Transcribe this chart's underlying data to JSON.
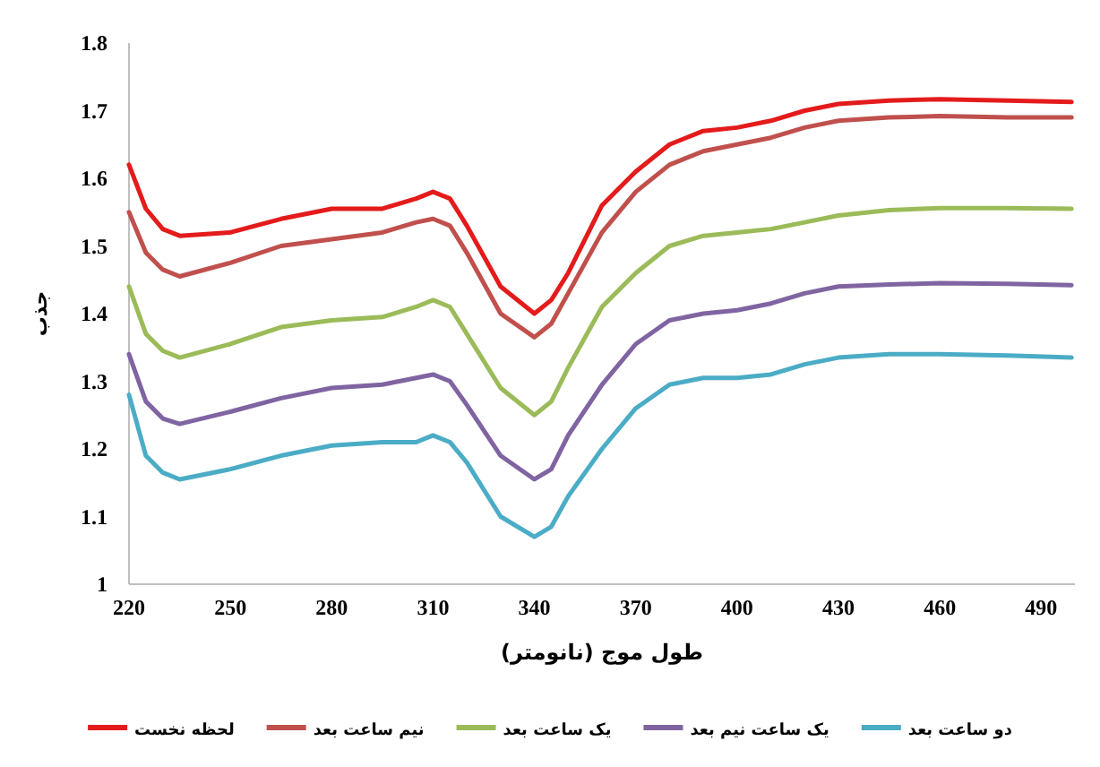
{
  "chart_data": {
    "type": "line",
    "xlabel": "طول موج (نانومتر)",
    "ylabel": "جذب",
    "x": [
      220,
      225,
      230,
      235,
      250,
      265,
      280,
      295,
      305,
      310,
      315,
      320,
      330,
      340,
      345,
      350,
      360,
      370,
      380,
      390,
      400,
      410,
      420,
      430,
      445,
      460,
      480,
      499
    ],
    "series": [
      {
        "name": "لحظه نخست",
        "color": "#e41b1b",
        "values": [
          1.62,
          1.555,
          1.525,
          1.515,
          1.52,
          1.54,
          1.555,
          1.555,
          1.57,
          1.58,
          1.57,
          1.53,
          1.44,
          1.4,
          1.42,
          1.46,
          1.56,
          1.61,
          1.65,
          1.67,
          1.675,
          1.685,
          1.7,
          1.71,
          1.715,
          1.717,
          1.715,
          1.713
        ]
      },
      {
        "name": "نیم ساعت بعد",
        "color": "#c0504d",
        "values": [
          1.55,
          1.49,
          1.465,
          1.455,
          1.475,
          1.5,
          1.51,
          1.52,
          1.535,
          1.54,
          1.53,
          1.49,
          1.4,
          1.365,
          1.385,
          1.43,
          1.52,
          1.58,
          1.62,
          1.64,
          1.65,
          1.66,
          1.675,
          1.685,
          1.69,
          1.692,
          1.69,
          1.69
        ]
      },
      {
        "name": "یک ساعت بعد",
        "color": "#9bbb59",
        "values": [
          1.44,
          1.37,
          1.345,
          1.335,
          1.355,
          1.38,
          1.39,
          1.395,
          1.41,
          1.42,
          1.41,
          1.37,
          1.29,
          1.25,
          1.27,
          1.32,
          1.41,
          1.46,
          1.5,
          1.515,
          1.52,
          1.525,
          1.535,
          1.545,
          1.553,
          1.556,
          1.556,
          1.555
        ]
      },
      {
        "name": "یک ساعت نیم بعد",
        "color": "#8064a2",
        "values": [
          1.34,
          1.27,
          1.245,
          1.237,
          1.255,
          1.275,
          1.29,
          1.295,
          1.305,
          1.31,
          1.3,
          1.265,
          1.19,
          1.155,
          1.17,
          1.22,
          1.295,
          1.355,
          1.39,
          1.4,
          1.405,
          1.415,
          1.43,
          1.44,
          1.443,
          1.445,
          1.444,
          1.442
        ]
      },
      {
        "name": "دو ساعت بعد",
        "color": "#4bacc6",
        "values": [
          1.28,
          1.19,
          1.165,
          1.155,
          1.17,
          1.19,
          1.205,
          1.21,
          1.21,
          1.22,
          1.21,
          1.18,
          1.1,
          1.07,
          1.085,
          1.13,
          1.2,
          1.26,
          1.295,
          1.305,
          1.305,
          1.31,
          1.325,
          1.335,
          1.34,
          1.34,
          1.338,
          1.335
        ]
      }
    ],
    "xlim": [
      220,
      500
    ],
    "ylim": [
      1,
      1.8
    ],
    "xticks": [
      220,
      250,
      280,
      310,
      340,
      370,
      400,
      430,
      460,
      490
    ],
    "yticks": [
      1,
      1.1,
      1.2,
      1.3,
      1.4,
      1.5,
      1.6,
      1.7,
      1.8
    ],
    "grid": false,
    "legend": "bottom"
  }
}
